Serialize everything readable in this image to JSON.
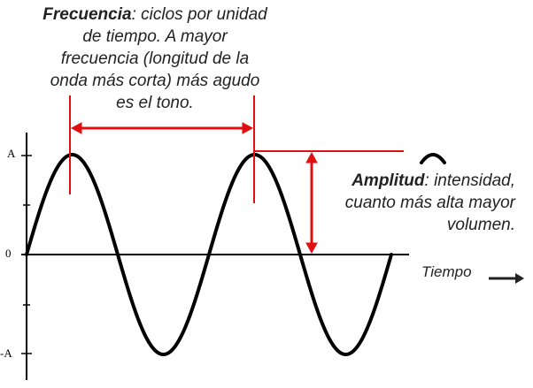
{
  "frequency": {
    "term": "Frecuencia",
    "lines": [
      ": ciclos por unidad",
      "de tiempo. A mayor",
      "frecuencia (longitud de la",
      "onda más corta) más agudo",
      "es el tono."
    ]
  },
  "amplitude": {
    "term": "Amplitud",
    "lines": [
      ": intensidad,",
      "cuanto más alta mayor",
      "volumen."
    ]
  },
  "axis": {
    "y_top": "A",
    "y_zero": "0",
    "y_bottom": "-A",
    "x_label": "Tiempo"
  },
  "colors": {
    "annotation": "#e01010",
    "wave": "#000000",
    "text": "#222222"
  }
}
